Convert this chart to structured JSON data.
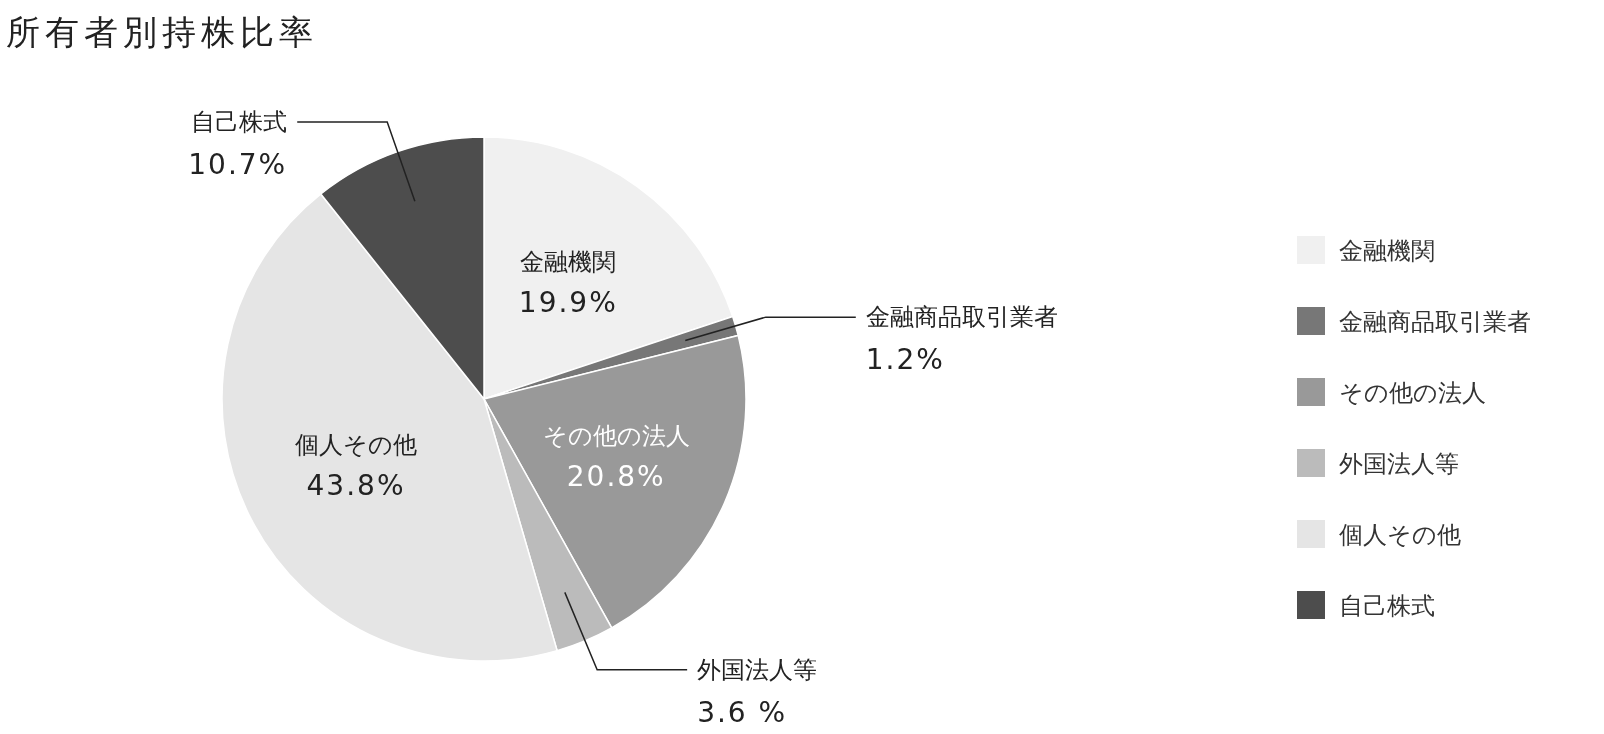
{
  "chart_data": {
    "type": "pie",
    "title": "所有者別持株比率",
    "categories": [
      "金融機関",
      "金融商品取引業者",
      "その他の法人",
      "外国法人等",
      "個人その他",
      "自己株式"
    ],
    "values": [
      19.9,
      1.2,
      20.8,
      3.6,
      43.8,
      10.7
    ],
    "value_labels": [
      "19.9%",
      "1.2%",
      "20.8%",
      "3.6 %",
      "43.8%",
      "10.7%"
    ],
    "colors": [
      "#f0f0f0",
      "#777777",
      "#999999",
      "#bbbbbb",
      "#e5e5e5",
      "#4d4d4d"
    ],
    "legend": "right"
  }
}
